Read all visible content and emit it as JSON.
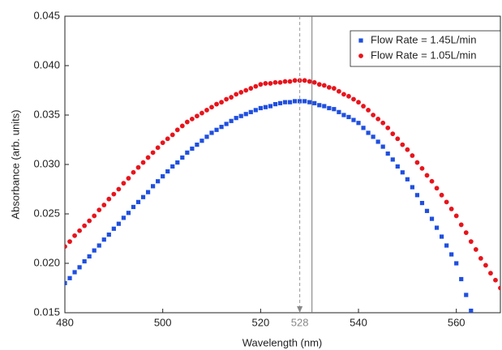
{
  "chart_data": {
    "type": "scatter",
    "x_label": "Wavelength (nm)",
    "y_label": "Absorbance (arb. units)",
    "xlim": [
      480,
      569
    ],
    "ylim": [
      0.015,
      0.045
    ],
    "xticks": [
      480,
      500,
      520,
      540,
      560
    ],
    "yticks": [
      0.015,
      {
        "value": 0.02,
        "label": "0.020"
      },
      0.025,
      {
        "value": 0.03,
        "label": "0.030"
      },
      0.035,
      {
        "value": 0.04,
        "label": "0.040"
      },
      0.045
    ],
    "grid": false,
    "legend": "upper right",
    "reference_lines": [
      {
        "x": 528,
        "style": "dashed",
        "label": "528"
      },
      {
        "x": 530.5,
        "style": "solid"
      }
    ],
    "series": [
      {
        "name": "Flow Rate = 1.45L/min",
        "color": "#1f4fe0",
        "marker": "square",
        "x": [
          480,
          481,
          482,
          483,
          484,
          485,
          486,
          487,
          488,
          489,
          490,
          491,
          492,
          493,
          494,
          495,
          496,
          497,
          498,
          499,
          500,
          501,
          502,
          503,
          504,
          505,
          506,
          507,
          508,
          509,
          510,
          511,
          512,
          513,
          514,
          515,
          516,
          517,
          518,
          519,
          520,
          521,
          522,
          523,
          524,
          525,
          526,
          527,
          528,
          529,
          530,
          531,
          532,
          533,
          534,
          535,
          536,
          537,
          538,
          539,
          540,
          541,
          542,
          543,
          544,
          545,
          546,
          547,
          548,
          549,
          550,
          551,
          552,
          553,
          554,
          555,
          556,
          557,
          558,
          559,
          560,
          561,
          562,
          563
        ],
        "values": [
          0.018,
          0.0185,
          0.0191,
          0.0196,
          0.0202,
          0.0207,
          0.0213,
          0.0218,
          0.0224,
          0.0229,
          0.0235,
          0.024,
          0.0246,
          0.0251,
          0.0257,
          0.0262,
          0.0267,
          0.0272,
          0.0278,
          0.0283,
          0.0288,
          0.0293,
          0.0298,
          0.0302,
          0.0307,
          0.0312,
          0.0316,
          0.032,
          0.0324,
          0.0328,
          0.0332,
          0.0335,
          0.0338,
          0.0341,
          0.0344,
          0.0347,
          0.0349,
          0.0351,
          0.0353,
          0.0355,
          0.0357,
          0.0358,
          0.0359,
          0.0361,
          0.0362,
          0.0363,
          0.0363,
          0.0364,
          0.0364,
          0.0364,
          0.0363,
          0.0362,
          0.036,
          0.0359,
          0.0357,
          0.0356,
          0.0353,
          0.035,
          0.0348,
          0.0345,
          0.0342,
          0.0337,
          0.0332,
          0.0328,
          0.0323,
          0.0318,
          0.0311,
          0.0305,
          0.0298,
          0.0292,
          0.0285,
          0.0277,
          0.0269,
          0.0261,
          0.0253,
          0.0245,
          0.0236,
          0.0227,
          0.0218,
          0.0209,
          0.02,
          0.0184,
          0.0168,
          0.0152
        ]
      },
      {
        "name": "Flow Rate = 1.05L/min",
        "color": "#e8141c",
        "marker": "circle",
        "x": [
          480,
          481,
          482,
          483,
          484,
          485,
          486,
          487,
          488,
          489,
          490,
          491,
          492,
          493,
          494,
          495,
          496,
          497,
          498,
          499,
          500,
          501,
          502,
          503,
          504,
          505,
          506,
          507,
          508,
          509,
          510,
          511,
          512,
          513,
          514,
          515,
          516,
          517,
          518,
          519,
          520,
          521,
          522,
          523,
          524,
          525,
          526,
          527,
          528,
          529,
          530,
          531,
          532,
          533,
          534,
          535,
          536,
          537,
          538,
          539,
          540,
          541,
          542,
          543,
          544,
          545,
          546,
          547,
          548,
          549,
          550,
          551,
          552,
          553,
          554,
          555,
          556,
          557,
          558,
          559,
          560,
          561,
          562,
          563,
          564,
          565,
          566,
          567,
          568,
          569
        ],
        "values": [
          0.0217,
          0.0222,
          0.0228,
          0.0233,
          0.0238,
          0.0243,
          0.0248,
          0.0254,
          0.0259,
          0.0265,
          0.027,
          0.0275,
          0.0281,
          0.0286,
          0.0292,
          0.0297,
          0.0302,
          0.0307,
          0.0312,
          0.0317,
          0.0322,
          0.0326,
          0.033,
          0.0335,
          0.0339,
          0.0343,
          0.0346,
          0.0349,
          0.0352,
          0.0355,
          0.0358,
          0.0361,
          0.0363,
          0.0366,
          0.0368,
          0.0371,
          0.0373,
          0.0375,
          0.0377,
          0.0379,
          0.0381,
          0.0382,
          0.0382,
          0.0383,
          0.0383,
          0.0384,
          0.0384,
          0.0385,
          0.0385,
          0.0385,
          0.0384,
          0.0383,
          0.0381,
          0.038,
          0.0378,
          0.0377,
          0.0374,
          0.0371,
          0.0369,
          0.0366,
          0.0363,
          0.0359,
          0.0355,
          0.035,
          0.0346,
          0.0342,
          0.0337,
          0.0331,
          0.0326,
          0.032,
          0.0315,
          0.0309,
          0.0302,
          0.0296,
          0.0289,
          0.0283,
          0.0276,
          0.0269,
          0.0262,
          0.0255,
          0.0248,
          0.0239,
          0.0231,
          0.0222,
          0.0214,
          0.0205,
          0.0198,
          0.019,
          0.0183,
          0.0175
        ]
      }
    ]
  }
}
